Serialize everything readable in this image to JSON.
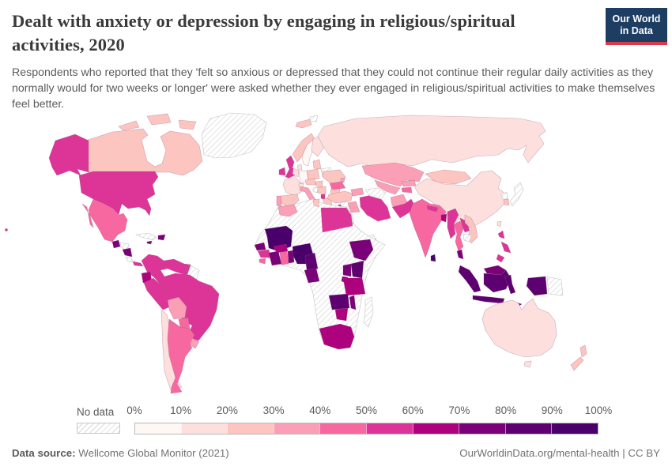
{
  "header": {
    "title": "Dealt with anxiety or depression by engaging in religious/spiritual activities, 2020",
    "logo": {
      "line1": "Our World",
      "line2": "in Data"
    }
  },
  "subtitle": "Respondents who reported that they 'felt so anxious or depressed that they could not continue their regular daily activities as they normally would for two weeks or longer' were asked whether they ever engaged in religious/spiritual activities to make themselves feel better.",
  "legend": {
    "no_data_label": "No data",
    "tick_labels": [
      "0%",
      "10%",
      "20%",
      "30%",
      "40%",
      "50%",
      "60%",
      "70%",
      "80%",
      "90%",
      "100%"
    ],
    "bin_colors": [
      "#fff7f3",
      "#fde0dd",
      "#fcc5c0",
      "#fa9fb5",
      "#f768a1",
      "#dd3497",
      "#ae017e",
      "#7a0177",
      "#5e0170",
      "#49006a"
    ]
  },
  "footer": {
    "source_label": "Data source:",
    "source_value": " Wellcome Global Monitor (2021)",
    "credit": "OurWorldinData.org/mental-health | CC BY"
  },
  "chart_data": {
    "type": "choropleth_map",
    "title": "Dealt with anxiety or depression by engaging in religious/spiritual activities",
    "year": 2020,
    "unit": "% of respondents",
    "no_data_style": "diagonal-hatch",
    "legend_bins": [
      "0-10%",
      "10-20%",
      "20-30%",
      "30-40%",
      "40-50%",
      "50-60%",
      "60-70%",
      "70-80%",
      "80-90%",
      "90-100%"
    ],
    "regions": [
      {
        "name": "United States",
        "range": "50-60%"
      },
      {
        "name": "Canada",
        "range": "20-30%"
      },
      {
        "name": "Mexico",
        "range": "40-50%"
      },
      {
        "name": "Greenland",
        "range": "No data"
      },
      {
        "name": "Guatemala",
        "range": "70-80%"
      },
      {
        "name": "Honduras",
        "range": "No data"
      },
      {
        "name": "Nicaragua",
        "range": "70-80%"
      },
      {
        "name": "Costa Rica",
        "range": "No data"
      },
      {
        "name": "Panama",
        "range": "50-60%"
      },
      {
        "name": "Cuba",
        "range": "No data"
      },
      {
        "name": "Jamaica",
        "range": "70-80%"
      },
      {
        "name": "Dominican Republic",
        "range": "70-80%"
      },
      {
        "name": "Colombia",
        "range": "50-60%"
      },
      {
        "name": "Venezuela",
        "range": "50-60%"
      },
      {
        "name": "Guyana",
        "range": "No data"
      },
      {
        "name": "Ecuador",
        "range": "60-70%"
      },
      {
        "name": "Peru",
        "range": "50-60%"
      },
      {
        "name": "Brazil",
        "range": "50-60%"
      },
      {
        "name": "Bolivia",
        "range": "30-40%"
      },
      {
        "name": "Paraguay",
        "range": "40-50%"
      },
      {
        "name": "Chile",
        "range": "10-20%"
      },
      {
        "name": "Argentina",
        "range": "40-50%"
      },
      {
        "name": "Uruguay",
        "range": "30-40%"
      },
      {
        "name": "Iceland",
        "range": "20-30%"
      },
      {
        "name": "United Kingdom",
        "range": "50-60%"
      },
      {
        "name": "Ireland",
        "range": "50-60%"
      },
      {
        "name": "Norway",
        "range": "20-30%"
      },
      {
        "name": "Sweden",
        "range": "0-10%"
      },
      {
        "name": "Finland",
        "range": "10-20%"
      },
      {
        "name": "Denmark",
        "range": "10-20%"
      },
      {
        "name": "Germany",
        "range": "0-10%"
      },
      {
        "name": "Netherlands",
        "range": "10-20%"
      },
      {
        "name": "France",
        "range": "10-20%"
      },
      {
        "name": "Spain",
        "range": "20-30%"
      },
      {
        "name": "Portugal",
        "range": "30-40%"
      },
      {
        "name": "Italy",
        "range": "30-40%"
      },
      {
        "name": "Switzerland",
        "range": "10-20%"
      },
      {
        "name": "Austria",
        "range": "20-30%"
      },
      {
        "name": "Czechia",
        "range": "20-30%"
      },
      {
        "name": "Poland",
        "range": "20-30%"
      },
      {
        "name": "Lithuania",
        "range": "20-30%"
      },
      {
        "name": "Belarus",
        "range": "No data"
      },
      {
        "name": "Ukraine",
        "range": "20-30%"
      },
      {
        "name": "Moldova",
        "range": "30-40%"
      },
      {
        "name": "Romania",
        "range": "40-50%"
      },
      {
        "name": "Hungary",
        "range": "20-30%"
      },
      {
        "name": "Serbia",
        "range": "20-30%"
      },
      {
        "name": "Bosnia and Herzegovina",
        "range": "No data"
      },
      {
        "name": "Albania",
        "range": "50-60%"
      },
      {
        "name": "Greece",
        "range": "20-30%"
      },
      {
        "name": "Bulgaria",
        "range": "20-30%"
      },
      {
        "name": "Russia",
        "range": "10-20%"
      },
      {
        "name": "Turkey",
        "range": "20-30%"
      },
      {
        "name": "Cyprus",
        "range": "50-60%"
      },
      {
        "name": "Syria",
        "range": "No data"
      },
      {
        "name": "Israel",
        "range": "20-30%"
      },
      {
        "name": "Iraq",
        "range": "30-40%"
      },
      {
        "name": "Saudi Arabia",
        "range": "No data"
      },
      {
        "name": "Yemen",
        "range": "No data"
      },
      {
        "name": "Oman",
        "range": "No data"
      },
      {
        "name": "Iran",
        "range": "50-60%"
      },
      {
        "name": "Afghanistan",
        "range": "30-40%"
      },
      {
        "name": "Pakistan",
        "range": "50-60%"
      },
      {
        "name": "Kazakhstan",
        "range": "30-40%"
      },
      {
        "name": "Uzbekistan",
        "range": "30-40%"
      },
      {
        "name": "Turkmenistan",
        "range": "No data"
      },
      {
        "name": "Kyrgyzstan",
        "range": "30-40%"
      },
      {
        "name": "Tajikistan",
        "range": "40-50%"
      },
      {
        "name": "Azerbaijan",
        "range": "30-40%"
      },
      {
        "name": "Mongolia",
        "range": "20-30%"
      },
      {
        "name": "China",
        "range": "10-20%"
      },
      {
        "name": "Japan",
        "range": "No data"
      },
      {
        "name": "North Korea",
        "range": "No data"
      },
      {
        "name": "South Korea",
        "range": "20-30%"
      },
      {
        "name": "Taiwan",
        "range": "10-20%"
      },
      {
        "name": "India",
        "range": "40-50%"
      },
      {
        "name": "Nepal",
        "range": "50-60%"
      },
      {
        "name": "Bangladesh",
        "range": "60-70%"
      },
      {
        "name": "Sri Lanka",
        "range": "90-100%"
      },
      {
        "name": "Myanmar",
        "range": "50-60%"
      },
      {
        "name": "Thailand",
        "range": "40-50%"
      },
      {
        "name": "Laos",
        "range": "50-60%"
      },
      {
        "name": "Cambodia",
        "range": "No data"
      },
      {
        "name": "Vietnam",
        "range": "20-30%"
      },
      {
        "name": "Philippines",
        "range": "50-60%"
      },
      {
        "name": "Malaysia",
        "range": "70-80%"
      },
      {
        "name": "Indonesia",
        "range": "80-90%"
      },
      {
        "name": "Papua New Guinea",
        "range": "No data"
      },
      {
        "name": "Australia",
        "range": "10-20%"
      },
      {
        "name": "New Zealand",
        "range": "20-30%"
      },
      {
        "name": "Morocco",
        "range": "30-40%"
      },
      {
        "name": "Algeria",
        "range": "No data"
      },
      {
        "name": "Tunisia",
        "range": "20-30%"
      },
      {
        "name": "Libya",
        "range": "No data"
      },
      {
        "name": "Egypt",
        "range": "50-60%"
      },
      {
        "name": "Mauritania",
        "range": "No data"
      },
      {
        "name": "Mali",
        "range": "90-100%"
      },
      {
        "name": "Senegal",
        "range": "70-80%"
      },
      {
        "name": "Guinea",
        "range": "50-60%"
      },
      {
        "name": "Sierra Leone",
        "range": "40-50%"
      },
      {
        "name": "Ivory Coast",
        "range": "70-80%"
      },
      {
        "name": "Burkina Faso",
        "range": "60-70%"
      },
      {
        "name": "Ghana",
        "range": "40-50%"
      },
      {
        "name": "Benin",
        "range": "70-80%"
      },
      {
        "name": "Nigeria",
        "range": "90-100%"
      },
      {
        "name": "Niger",
        "range": "No data"
      },
      {
        "name": "Chad",
        "range": "No data"
      },
      {
        "name": "Sudan",
        "range": "No data"
      },
      {
        "name": "Central African Republic",
        "range": "No data"
      },
      {
        "name": "Cameroon",
        "range": "80-90%"
      },
      {
        "name": "Gabon",
        "range": "70-80%"
      },
      {
        "name": "Republic of the Congo",
        "range": "70-80%"
      },
      {
        "name": "Democratic Republic of Congo",
        "range": "No data"
      },
      {
        "name": "Ethiopia",
        "range": "70-80%"
      },
      {
        "name": "Somalia",
        "range": "No data"
      },
      {
        "name": "Kenya",
        "range": "80-90%"
      },
      {
        "name": "Uganda",
        "range": "70-80%"
      },
      {
        "name": "Rwanda",
        "range": "70-80%"
      },
      {
        "name": "Tanzania",
        "range": "60-70%"
      },
      {
        "name": "Angola",
        "range": "No data"
      },
      {
        "name": "Zambia",
        "range": "80-90%"
      },
      {
        "name": "Malawi",
        "range": "70-80%"
      },
      {
        "name": "Zimbabwe",
        "range": "60-70%"
      },
      {
        "name": "Mozambique",
        "range": "No data"
      },
      {
        "name": "Namibia",
        "range": "No data"
      },
      {
        "name": "Botswana",
        "range": "No data"
      },
      {
        "name": "South Africa",
        "range": "60-70%"
      },
      {
        "name": "Madagascar",
        "range": "No data"
      }
    ]
  }
}
